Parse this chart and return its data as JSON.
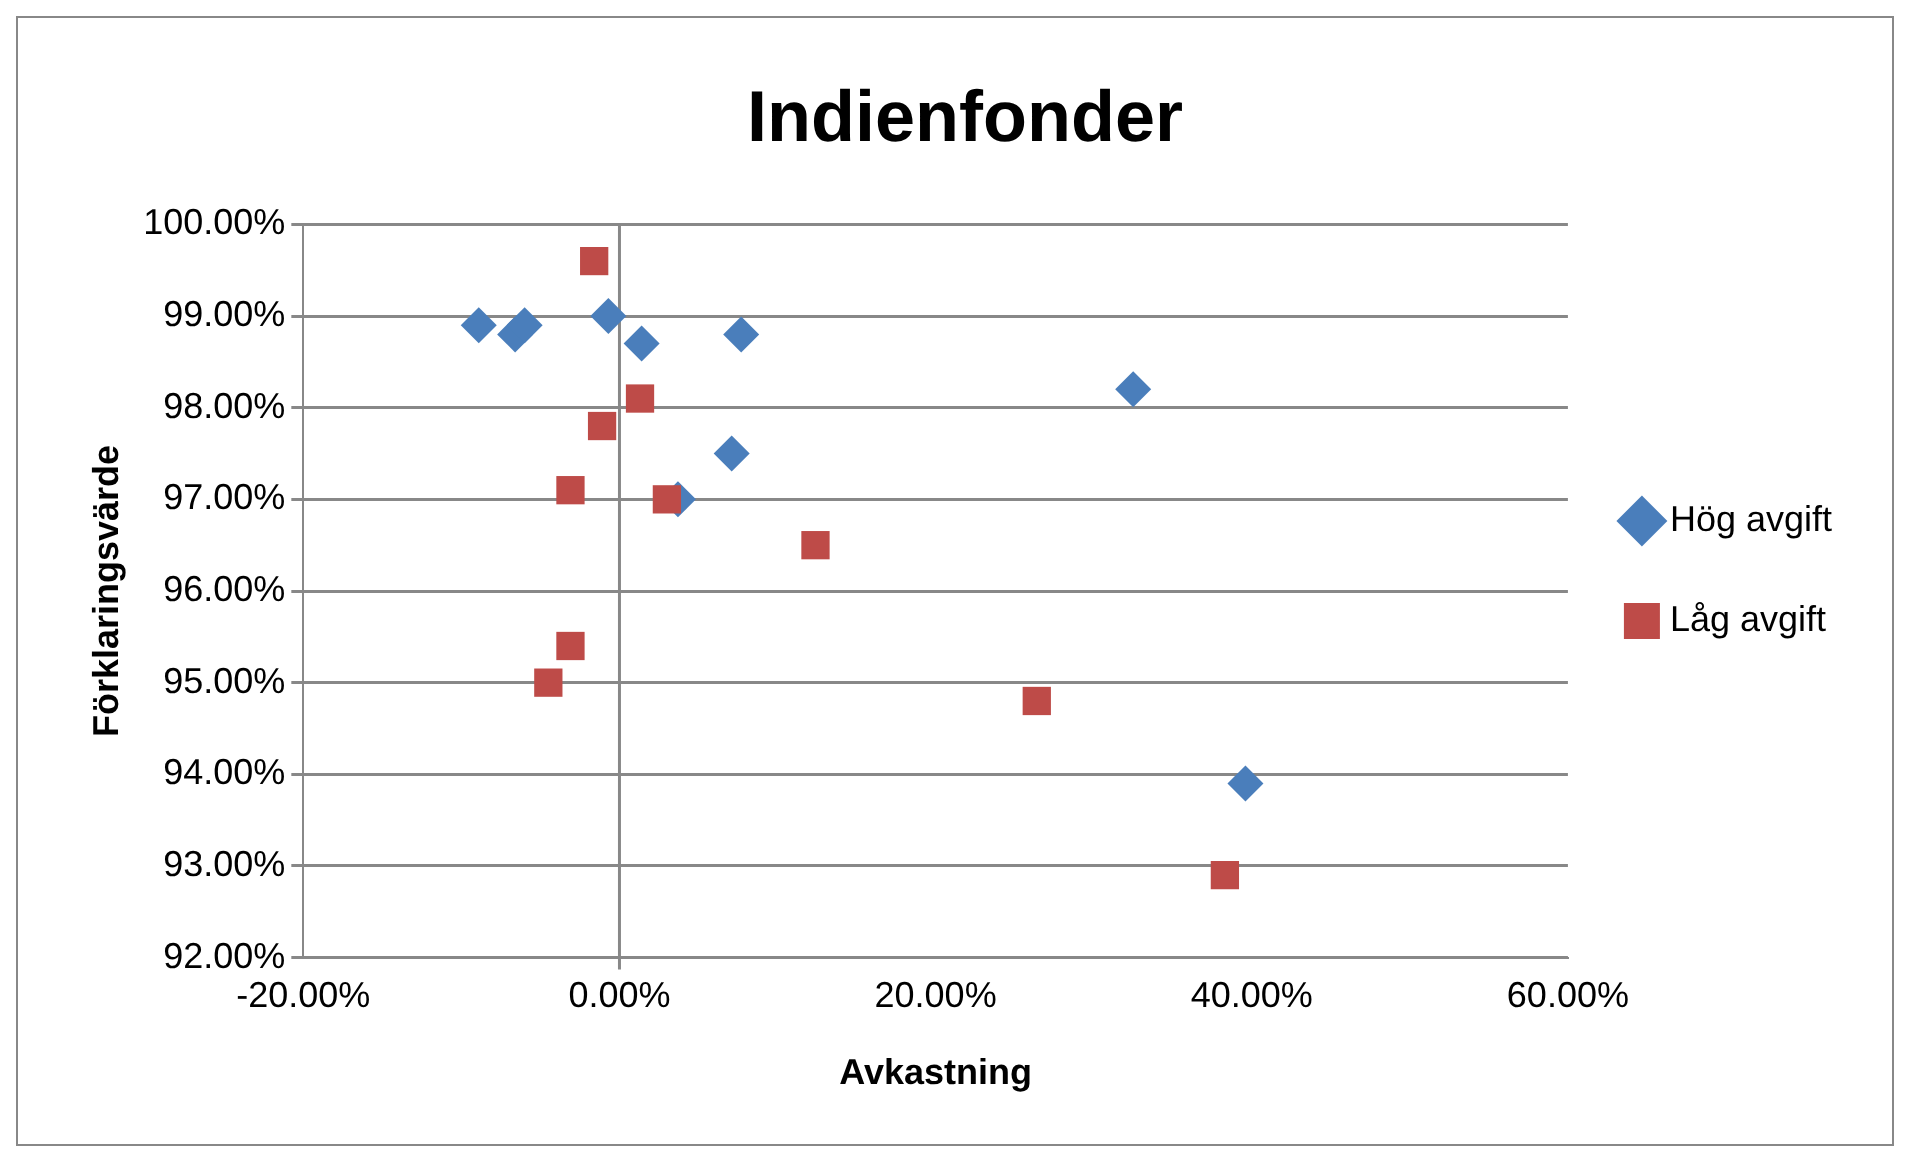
{
  "chart_data": {
    "type": "scatter",
    "title": "Indienfonder",
    "xlabel": "Avkastning",
    "ylabel": "Förklaringsvärde",
    "xlim": [
      -20,
      60
    ],
    "xticks": [
      {
        "value": -20,
        "label": "-20.00%"
      },
      {
        "value": 0,
        "label": "0.00%"
      },
      {
        "value": 20,
        "label": "20.00%"
      },
      {
        "value": 40,
        "label": "40.00%"
      },
      {
        "value": 60,
        "label": "60.00%"
      }
    ],
    "ylim": [
      92,
      100
    ],
    "yticks": [
      {
        "value": 92,
        "label": "92.00%"
      },
      {
        "value": 93,
        "label": "93.00%"
      },
      {
        "value": 94,
        "label": "94.00%"
      },
      {
        "value": 95,
        "label": "95.00%"
      },
      {
        "value": 96,
        "label": "96.00%"
      },
      {
        "value": 97,
        "label": "97.00%"
      },
      {
        "value": 98,
        "label": "98.00%"
      },
      {
        "value": 99,
        "label": "99.00%"
      },
      {
        "value": 100,
        "label": "100.00%"
      }
    ],
    "grid": "y",
    "legend": "right",
    "ref_lines": [
      {
        "axis": "x",
        "value": 0
      }
    ],
    "series": [
      {
        "name": "Hög avgift",
        "color": "#4a7ebb",
        "marker": "diamond",
        "x": [
          -8.9,
          -6.6,
          -6.0,
          -0.7,
          1.4,
          7.7,
          32.5,
          7.1,
          3.7,
          39.6
        ],
        "values": [
          98.9,
          98.8,
          98.9,
          99.0,
          98.7,
          98.8,
          98.2,
          97.5,
          97.0,
          93.9
        ]
      },
      {
        "name": "Låg avgift",
        "color": "#be4b48",
        "marker": "square",
        "x": [
          -1.6,
          1.3,
          -1.1,
          -3.1,
          3.0,
          12.4,
          -3.1,
          -4.5,
          26.4,
          38.3
        ],
        "values": [
          99.6,
          98.1,
          97.8,
          97.1,
          97.0,
          96.5,
          95.4,
          95.0,
          94.8,
          92.9
        ]
      }
    ]
  }
}
